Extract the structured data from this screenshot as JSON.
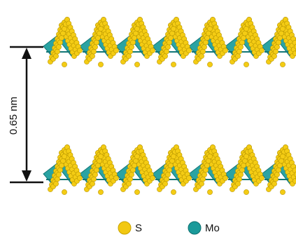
{
  "dimension": {
    "label": "0.65 nm"
  },
  "legend": [
    {
      "label": "S"
    },
    {
      "label": "Mo"
    }
  ]
}
